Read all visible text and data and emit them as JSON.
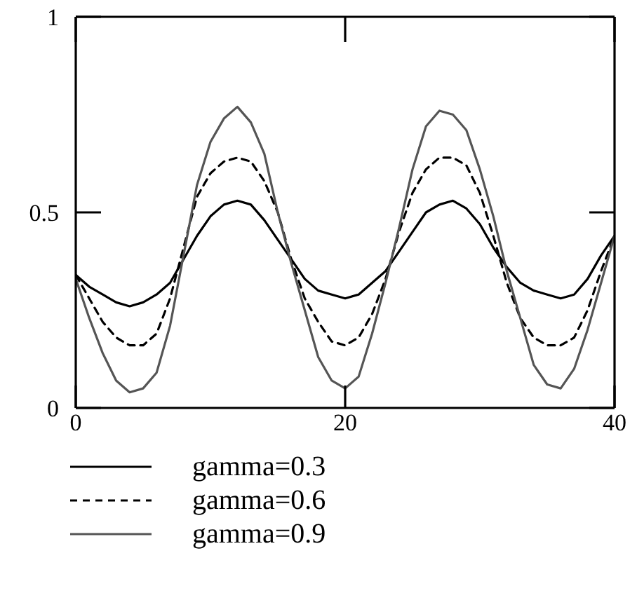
{
  "chart_data": {
    "type": "line",
    "x": [
      0,
      1,
      2,
      3,
      4,
      5,
      6,
      7,
      8,
      9,
      10,
      11,
      12,
      13,
      14,
      15,
      16,
      17,
      18,
      19,
      20,
      21,
      22,
      23,
      24,
      25,
      26,
      27,
      28,
      29,
      30,
      31,
      32,
      33,
      34,
      35,
      36,
      37,
      38,
      39,
      40
    ],
    "xlim": [
      0,
      40
    ],
    "xticks": [
      0,
      20,
      40
    ],
    "ylim": [
      0,
      1
    ],
    "yticks": [
      0,
      0.5,
      1
    ],
    "legend": "bottom",
    "marker": "none",
    "series": [
      {
        "name": "gamma=0.3",
        "color": "#000000",
        "line_style": "solid",
        "values": [
          0.34,
          0.31,
          0.29,
          0.27,
          0.26,
          0.27,
          0.29,
          0.32,
          0.38,
          0.44,
          0.49,
          0.52,
          0.53,
          0.52,
          0.48,
          0.43,
          0.38,
          0.33,
          0.3,
          0.29,
          0.28,
          0.29,
          0.32,
          0.35,
          0.4,
          0.45,
          0.5,
          0.52,
          0.53,
          0.51,
          0.47,
          0.41,
          0.36,
          0.32,
          0.3,
          0.29,
          0.28,
          0.29,
          0.33,
          0.39,
          0.44
        ]
      },
      {
        "name": "gamma=0.6",
        "color": "#000000",
        "line_style": "dashed",
        "values": [
          0.34,
          0.28,
          0.22,
          0.18,
          0.16,
          0.16,
          0.19,
          0.28,
          0.41,
          0.54,
          0.6,
          0.63,
          0.64,
          0.63,
          0.58,
          0.5,
          0.38,
          0.28,
          0.22,
          0.17,
          0.16,
          0.18,
          0.24,
          0.33,
          0.45,
          0.55,
          0.61,
          0.64,
          0.64,
          0.62,
          0.55,
          0.44,
          0.32,
          0.23,
          0.18,
          0.16,
          0.16,
          0.18,
          0.25,
          0.35,
          0.44
        ]
      },
      {
        "name": "gamma=0.9",
        "color": "#555555",
        "line_style": "solid",
        "values": [
          0.33,
          0.23,
          0.14,
          0.07,
          0.04,
          0.05,
          0.09,
          0.21,
          0.39,
          0.57,
          0.68,
          0.74,
          0.77,
          0.73,
          0.65,
          0.5,
          0.37,
          0.25,
          0.13,
          0.07,
          0.05,
          0.08,
          0.19,
          0.32,
          0.46,
          0.61,
          0.72,
          0.76,
          0.75,
          0.71,
          0.61,
          0.49,
          0.35,
          0.23,
          0.11,
          0.06,
          0.05,
          0.1,
          0.2,
          0.32,
          0.44
        ]
      }
    ]
  }
}
